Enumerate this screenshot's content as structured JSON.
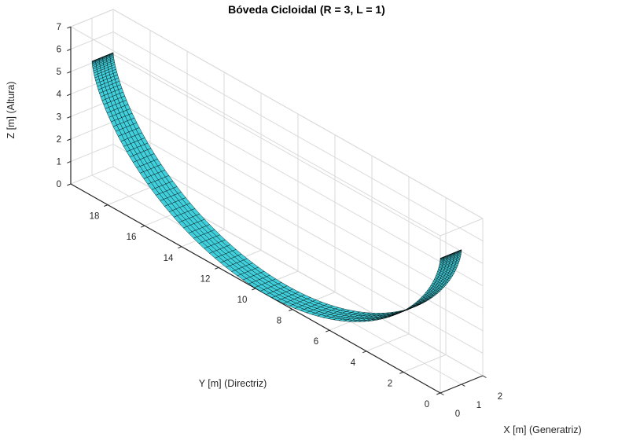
{
  "chart_data": {
    "type": "surface3d",
    "title": "Bóveda Cicloidal (R = 3, L = 1)",
    "parameters": {
      "R": 3,
      "L": 1
    },
    "axes": {
      "x": {
        "label": "X [m] (Generatriz)",
        "range": [
          0,
          2
        ],
        "ticks": [
          0,
          1,
          2
        ]
      },
      "y": {
        "label": "Y [m] (Directriz)",
        "range": [
          0,
          20
        ],
        "ticks": [
          0,
          2,
          4,
          6,
          8,
          10,
          12,
          14,
          16,
          18
        ]
      },
      "z": {
        "label": "Z [m] (Altura)",
        "range": [
          0,
          7
        ],
        "ticks": [
          0,
          1,
          2,
          3,
          4,
          5,
          6,
          7
        ]
      }
    },
    "surface": {
      "kind": "cycloid-vault",
      "equations": {
        "x": "u*L for u in [0,1]",
        "y": "R*(t - sin t)",
        "z": "R*(1 + cos t)",
        "t_domain": [
          0,
          6.2832
        ]
      },
      "t_samples": 120,
      "u_samples": 6,
      "profile_points": [
        {
          "t": 0.0,
          "y": 0.0,
          "z": 6.0
        },
        {
          "t": 0.785,
          "y": 0.23,
          "z": 5.12
        },
        {
          "t": 1.571,
          "y": 1.71,
          "z": 3.0
        },
        {
          "t": 2.356,
          "y": 4.95,
          "z": 0.88
        },
        {
          "t": 3.142,
          "y": 9.42,
          "z": 0.0
        },
        {
          "t": 3.927,
          "y": 13.9,
          "z": 0.88
        },
        {
          "t": 4.712,
          "y": 17.14,
          "z": 3.0
        },
        {
          "t": 5.498,
          "y": 18.62,
          "z": 5.12
        },
        {
          "t": 6.283,
          "y": 18.85,
          "z": 6.0
        }
      ]
    },
    "style": {
      "surface_color": "#40CFDB",
      "edge_color": "#000000",
      "grid_color": "#dadada",
      "axis_color": "#262626",
      "background": "#ffffff",
      "view": {
        "azimuth": -37.5,
        "elevation": 30,
        "projection": "orthographic"
      }
    }
  }
}
